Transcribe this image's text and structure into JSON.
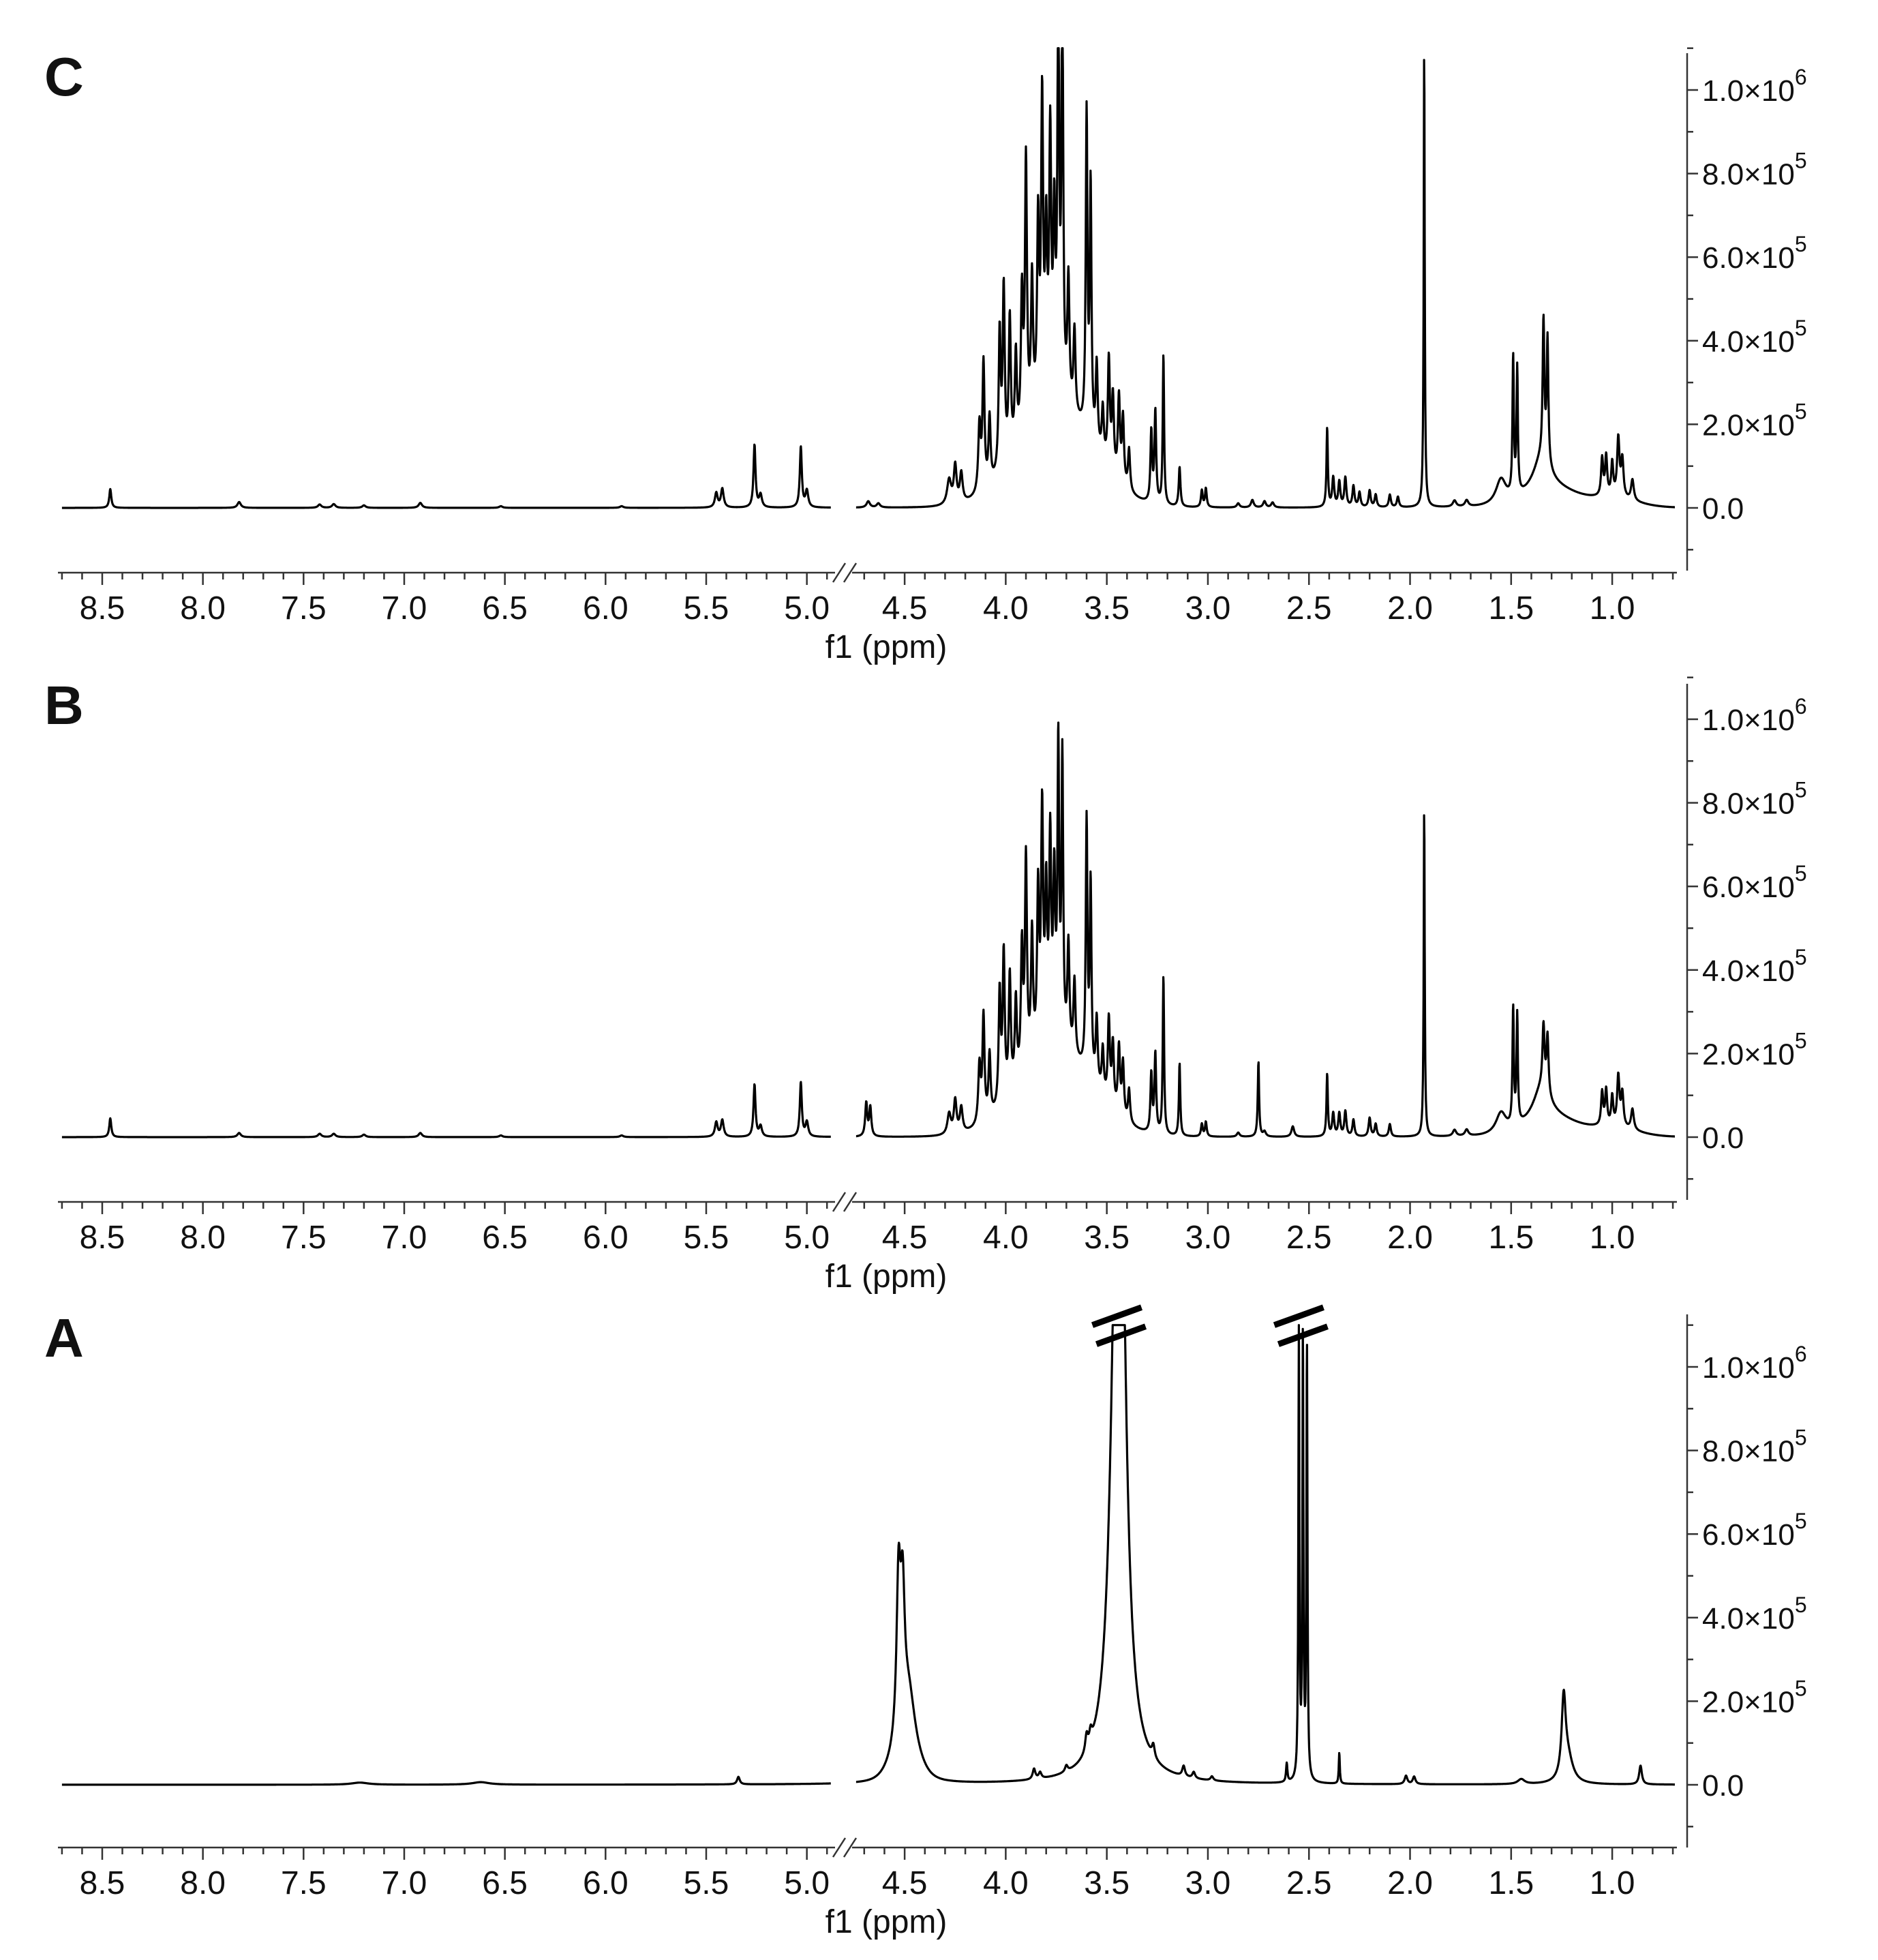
{
  "chart_data": [
    {
      "type": "line",
      "panel_label": "C",
      "xlabel": "f1 (ppm)",
      "ylabel": "",
      "x_axis_reversed": true,
      "x_axis_break": [
        4.86,
        4.76
      ],
      "x_ticks": [
        "8.5",
        "8.0",
        "7.5",
        "7.0",
        "6.5",
        "6.0",
        "5.5",
        "5.0",
        "4.5",
        "4.0",
        "3.5",
        "3.0",
        "2.5",
        "2.0",
        "1.5",
        "1.0"
      ],
      "xlim": [
        8.72,
        0.68
      ],
      "y_ticks": [
        {
          "value": 0,
          "label": "0.0"
        },
        {
          "value": 200000,
          "label": "2.0×10",
          "exp": "5"
        },
        {
          "value": 400000,
          "label": "4.0×10",
          "exp": "5"
        },
        {
          "value": 600000,
          "label": "6.0×10",
          "exp": "5"
        },
        {
          "value": 800000,
          "label": "8.0×10",
          "exp": "5"
        },
        {
          "value": 1000000,
          "label": "1.0×10",
          "exp": "6"
        }
      ],
      "ylim": [
        -150000,
        1100000
      ],
      "peaks": [
        [
          8.46,
          45000,
          0.006
        ],
        [
          7.82,
          14000,
          0.01
        ],
        [
          7.42,
          8000,
          0.01
        ],
        [
          7.35,
          9000,
          0.01
        ],
        [
          7.2,
          6000,
          0.01
        ],
        [
          6.92,
          12000,
          0.01
        ],
        [
          6.52,
          4000,
          0.01
        ],
        [
          5.92,
          4000,
          0.01
        ],
        [
          5.45,
          35000,
          0.008
        ],
        [
          5.42,
          45000,
          0.008
        ],
        [
          5.26,
          150000,
          0.006
        ],
        [
          5.23,
          30000,
          0.008
        ],
        [
          5.03,
          145000,
          0.006
        ],
        [
          5.0,
          40000,
          0.008
        ],
        [
          4.68,
          15000,
          0.01
        ],
        [
          4.63,
          10000,
          0.01
        ],
        [
          4.28,
          60000,
          0.012
        ],
        [
          4.25,
          90000,
          0.008
        ],
        [
          4.22,
          70000,
          0.008
        ],
        [
          4.13,
          160000,
          0.007
        ],
        [
          4.11,
          300000,
          0.006
        ],
        [
          4.08,
          160000,
          0.006
        ],
        [
          4.03,
          330000,
          0.006
        ],
        [
          4.01,
          420000,
          0.006
        ],
        [
          3.98,
          330000,
          0.006
        ],
        [
          3.95,
          220000,
          0.006
        ],
        [
          3.92,
          330000,
          0.006
        ],
        [
          3.9,
          640000,
          0.006
        ],
        [
          3.87,
          330000,
          0.006
        ],
        [
          3.84,
          440000,
          0.006
        ],
        [
          3.82,
          720000,
          0.006
        ],
        [
          3.8,
          380000,
          0.006
        ],
        [
          3.78,
          620000,
          0.006
        ],
        [
          3.76,
          410000,
          0.006
        ],
        [
          3.74,
          1000000,
          0.005
        ],
        [
          3.72,
          1000000,
          0.005
        ],
        [
          3.69,
          300000,
          0.006
        ],
        [
          3.66,
          200000,
          0.006
        ],
        [
          3.6,
          760000,
          0.005
        ],
        [
          3.58,
          600000,
          0.005
        ],
        [
          3.55,
          200000,
          0.006
        ],
        [
          3.52,
          120000,
          0.006
        ],
        [
          3.49,
          260000,
          0.006
        ],
        [
          3.47,
          180000,
          0.006
        ],
        [
          3.44,
          200000,
          0.006
        ],
        [
          3.42,
          160000,
          0.006
        ],
        [
          3.39,
          100000,
          0.006
        ],
        [
          3.28,
          170000,
          0.005
        ],
        [
          3.26,
          220000,
          0.005
        ],
        [
          3.22,
          360000,
          0.004
        ],
        [
          3.14,
          95000,
          0.005
        ],
        [
          3.03,
          40000,
          0.005
        ],
        [
          3.01,
          45000,
          0.005
        ],
        [
          2.85,
          10000,
          0.008
        ],
        [
          2.78,
          18000,
          0.008
        ],
        [
          2.72,
          15000,
          0.008
        ],
        [
          2.68,
          12000,
          0.008
        ],
        [
          2.41,
          190000,
          0.004
        ],
        [
          2.38,
          70000,
          0.006
        ],
        [
          2.35,
          60000,
          0.006
        ],
        [
          2.32,
          70000,
          0.006
        ],
        [
          2.28,
          50000,
          0.006
        ],
        [
          2.25,
          35000,
          0.006
        ],
        [
          2.2,
          40000,
          0.006
        ],
        [
          2.17,
          30000,
          0.006
        ],
        [
          2.1,
          30000,
          0.006
        ],
        [
          2.06,
          25000,
          0.006
        ],
        [
          1.93,
          1100000,
          0.003
        ],
        [
          1.78,
          15000,
          0.01
        ],
        [
          1.72,
          15000,
          0.01
        ],
        [
          1.55,
          60000,
          0.03
        ],
        [
          1.49,
          330000,
          0.004
        ],
        [
          1.47,
          300000,
          0.004
        ],
        [
          1.35,
          80000,
          0.05
        ],
        [
          1.34,
          330000,
          0.005
        ],
        [
          1.32,
          300000,
          0.005
        ],
        [
          1.05,
          90000,
          0.006
        ],
        [
          1.03,
          95000,
          0.006
        ],
        [
          1.0,
          80000,
          0.006
        ],
        [
          0.97,
          140000,
          0.007
        ],
        [
          0.95,
          90000,
          0.007
        ],
        [
          0.9,
          50000,
          0.008
        ]
      ],
      "envelopes": [
        [
          3.75,
          230000,
          0.18
        ],
        [
          1.3,
          40000,
          0.12
        ],
        [
          1.0,
          20000,
          0.12
        ]
      ]
    },
    {
      "type": "line",
      "panel_label": "B",
      "xlabel": "f1 (ppm)",
      "ylabel": "",
      "x_axis_reversed": true,
      "x_axis_break": [
        4.86,
        4.76
      ],
      "x_ticks": [
        "8.5",
        "8.0",
        "7.5",
        "7.0",
        "6.5",
        "6.0",
        "5.5",
        "5.0",
        "4.5",
        "4.0",
        "3.5",
        "3.0",
        "2.5",
        "2.0",
        "1.5",
        "1.0"
      ],
      "xlim": [
        8.72,
        0.68
      ],
      "y_ticks": [
        {
          "value": 0,
          "label": "0.0"
        },
        {
          "value": 200000,
          "label": "2.0×10",
          "exp": "5"
        },
        {
          "value": 400000,
          "label": "4.0×10",
          "exp": "5"
        },
        {
          "value": 600000,
          "label": "6.0×10",
          "exp": "5"
        },
        {
          "value": 800000,
          "label": "8.0×10",
          "exp": "5"
        },
        {
          "value": 1000000,
          "label": "1.0×10",
          "exp": "6"
        }
      ],
      "ylim": [
        -150000,
        1100000
      ],
      "peaks": [
        [
          8.46,
          45000,
          0.006
        ],
        [
          7.82,
          10000,
          0.01
        ],
        [
          7.42,
          8000,
          0.01
        ],
        [
          7.35,
          8000,
          0.01
        ],
        [
          7.2,
          6000,
          0.01
        ],
        [
          6.92,
          10000,
          0.01
        ],
        [
          6.52,
          4000,
          0.01
        ],
        [
          5.92,
          4000,
          0.01
        ],
        [
          5.45,
          35000,
          0.008
        ],
        [
          5.42,
          40000,
          0.008
        ],
        [
          5.26,
          125000,
          0.006
        ],
        [
          5.23,
          25000,
          0.008
        ],
        [
          5.03,
          130000,
          0.006
        ],
        [
          5.0,
          35000,
          0.008
        ],
        [
          4.69,
          80000,
          0.006
        ],
        [
          4.67,
          70000,
          0.006
        ],
        [
          4.28,
          50000,
          0.01
        ],
        [
          4.25,
          80000,
          0.008
        ],
        [
          4.22,
          60000,
          0.008
        ],
        [
          4.13,
          140000,
          0.007
        ],
        [
          4.11,
          250000,
          0.006
        ],
        [
          4.08,
          150000,
          0.006
        ],
        [
          4.03,
          270000,
          0.006
        ],
        [
          4.01,
          350000,
          0.006
        ],
        [
          3.98,
          280000,
          0.006
        ],
        [
          3.95,
          200000,
          0.006
        ],
        [
          3.92,
          300000,
          0.006
        ],
        [
          3.9,
          500000,
          0.006
        ],
        [
          3.87,
          300000,
          0.006
        ],
        [
          3.84,
          380000,
          0.006
        ],
        [
          3.82,
          560000,
          0.006
        ],
        [
          3.8,
          350000,
          0.006
        ],
        [
          3.78,
          480000,
          0.006
        ],
        [
          3.76,
          380000,
          0.006
        ],
        [
          3.74,
          700000,
          0.005
        ],
        [
          3.72,
          680000,
          0.005
        ],
        [
          3.69,
          250000,
          0.006
        ],
        [
          3.66,
          180000,
          0.006
        ],
        [
          3.6,
          600000,
          0.005
        ],
        [
          3.58,
          460000,
          0.005
        ],
        [
          3.55,
          160000,
          0.006
        ],
        [
          3.52,
          110000,
          0.006
        ],
        [
          3.49,
          200000,
          0.006
        ],
        [
          3.47,
          150000,
          0.006
        ],
        [
          3.44,
          160000,
          0.006
        ],
        [
          3.42,
          130000,
          0.006
        ],
        [
          3.39,
          80000,
          0.006
        ],
        [
          3.28,
          140000,
          0.005
        ],
        [
          3.26,
          190000,
          0.005
        ],
        [
          3.22,
          380000,
          0.004
        ],
        [
          3.14,
          175000,
          0.004
        ],
        [
          3.03,
          30000,
          0.005
        ],
        [
          3.01,
          35000,
          0.005
        ],
        [
          2.85,
          10000,
          0.008
        ],
        [
          2.75,
          180000,
          0.004
        ],
        [
          2.72,
          12000,
          0.008
        ],
        [
          2.58,
          25000,
          0.008
        ],
        [
          2.41,
          150000,
          0.004
        ],
        [
          2.38,
          55000,
          0.006
        ],
        [
          2.35,
          55000,
          0.006
        ],
        [
          2.32,
          60000,
          0.006
        ],
        [
          2.28,
          40000,
          0.006
        ],
        [
          2.2,
          45000,
          0.006
        ],
        [
          2.17,
          30000,
          0.006
        ],
        [
          2.1,
          30000,
          0.006
        ],
        [
          1.93,
          790000,
          0.003
        ],
        [
          1.78,
          15000,
          0.01
        ],
        [
          1.72,
          15000,
          0.01
        ],
        [
          1.55,
          50000,
          0.03
        ],
        [
          1.49,
          280000,
          0.004
        ],
        [
          1.47,
          260000,
          0.004
        ],
        [
          1.35,
          80000,
          0.05
        ],
        [
          1.34,
          150000,
          0.006
        ],
        [
          1.32,
          140000,
          0.006
        ],
        [
          1.05,
          80000,
          0.006
        ],
        [
          1.03,
          85000,
          0.006
        ],
        [
          1.0,
          70000,
          0.006
        ],
        [
          0.97,
          120000,
          0.007
        ],
        [
          0.95,
          80000,
          0.007
        ],
        [
          0.9,
          50000,
          0.008
        ]
      ],
      "envelopes": [
        [
          3.75,
          200000,
          0.18
        ],
        [
          1.3,
          40000,
          0.12
        ],
        [
          1.0,
          20000,
          0.12
        ]
      ]
    },
    {
      "type": "line",
      "panel_label": "A",
      "xlabel": "f1 (ppm)",
      "ylabel": "",
      "x_axis_reversed": true,
      "x_axis_break": [
        4.86,
        4.76
      ],
      "x_ticks": [
        "8.5",
        "8.0",
        "7.5",
        "7.0",
        "6.5",
        "6.0",
        "5.5",
        "5.0",
        "4.5",
        "4.0",
        "3.5",
        "3.0",
        "2.5",
        "2.0",
        "1.5",
        "1.0"
      ],
      "xlim": [
        8.72,
        0.68
      ],
      "y_ticks": [
        {
          "value": 0,
          "label": "0.0"
        },
        {
          "value": 200000,
          "label": "2.0×10",
          "exp": "5"
        },
        {
          "value": 400000,
          "label": "4.0×10",
          "exp": "5"
        },
        {
          "value": 600000,
          "label": "6.0×10",
          "exp": "5"
        },
        {
          "value": 800000,
          "label": "8.0×10",
          "exp": "5"
        },
        {
          "value": 1000000,
          "label": "1.0×10",
          "exp": "6"
        }
      ],
      "ylim": [
        -150000,
        1100000
      ],
      "peak_break_marks_ppm": [
        3.45,
        2.55
      ],
      "peaks": [
        [
          7.22,
          5000,
          0.05
        ],
        [
          6.62,
          6000,
          0.05
        ],
        [
          5.34,
          18000,
          0.008
        ],
        [
          4.53,
          380000,
          0.012
        ],
        [
          4.51,
          300000,
          0.012
        ],
        [
          4.48,
          150000,
          0.04
        ],
        [
          3.86,
          25000,
          0.008
        ],
        [
          3.83,
          15000,
          0.008
        ],
        [
          3.7,
          15000,
          0.008
        ],
        [
          3.6,
          40000,
          0.008
        ],
        [
          3.58,
          30000,
          0.008
        ],
        [
          3.45,
          1080000,
          0.035
        ],
        [
          3.43,
          900000,
          0.03
        ],
        [
          3.27,
          30000,
          0.008
        ],
        [
          3.12,
          25000,
          0.008
        ],
        [
          3.07,
          15000,
          0.008
        ],
        [
          2.98,
          10000,
          0.008
        ],
        [
          2.61,
          45000,
          0.004
        ],
        [
          2.55,
          1070000,
          0.003
        ],
        [
          2.53,
          1070000,
          0.003
        ],
        [
          2.51,
          1050000,
          0.003
        ],
        [
          2.35,
          75000,
          0.003
        ],
        [
          2.02,
          20000,
          0.008
        ],
        [
          1.98,
          18000,
          0.008
        ],
        [
          1.45,
          12000,
          0.02
        ],
        [
          1.24,
          185000,
          0.012
        ],
        [
          1.22,
          60000,
          0.03
        ],
        [
          0.86,
          45000,
          0.008
        ]
      ],
      "envelopes": [
        [
          4.5,
          60000,
          0.06
        ]
      ]
    }
  ]
}
